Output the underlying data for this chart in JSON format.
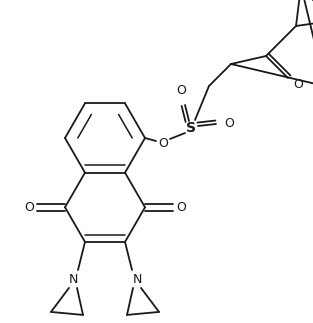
{
  "background": "#ffffff",
  "line_color": "#1a1a1a",
  "lw": 1.3,
  "figsize": [
    3.13,
    3.23
  ],
  "dpi": 100,
  "xlim": [
    0,
    313
  ],
  "ylim": [
    0,
    323
  ]
}
